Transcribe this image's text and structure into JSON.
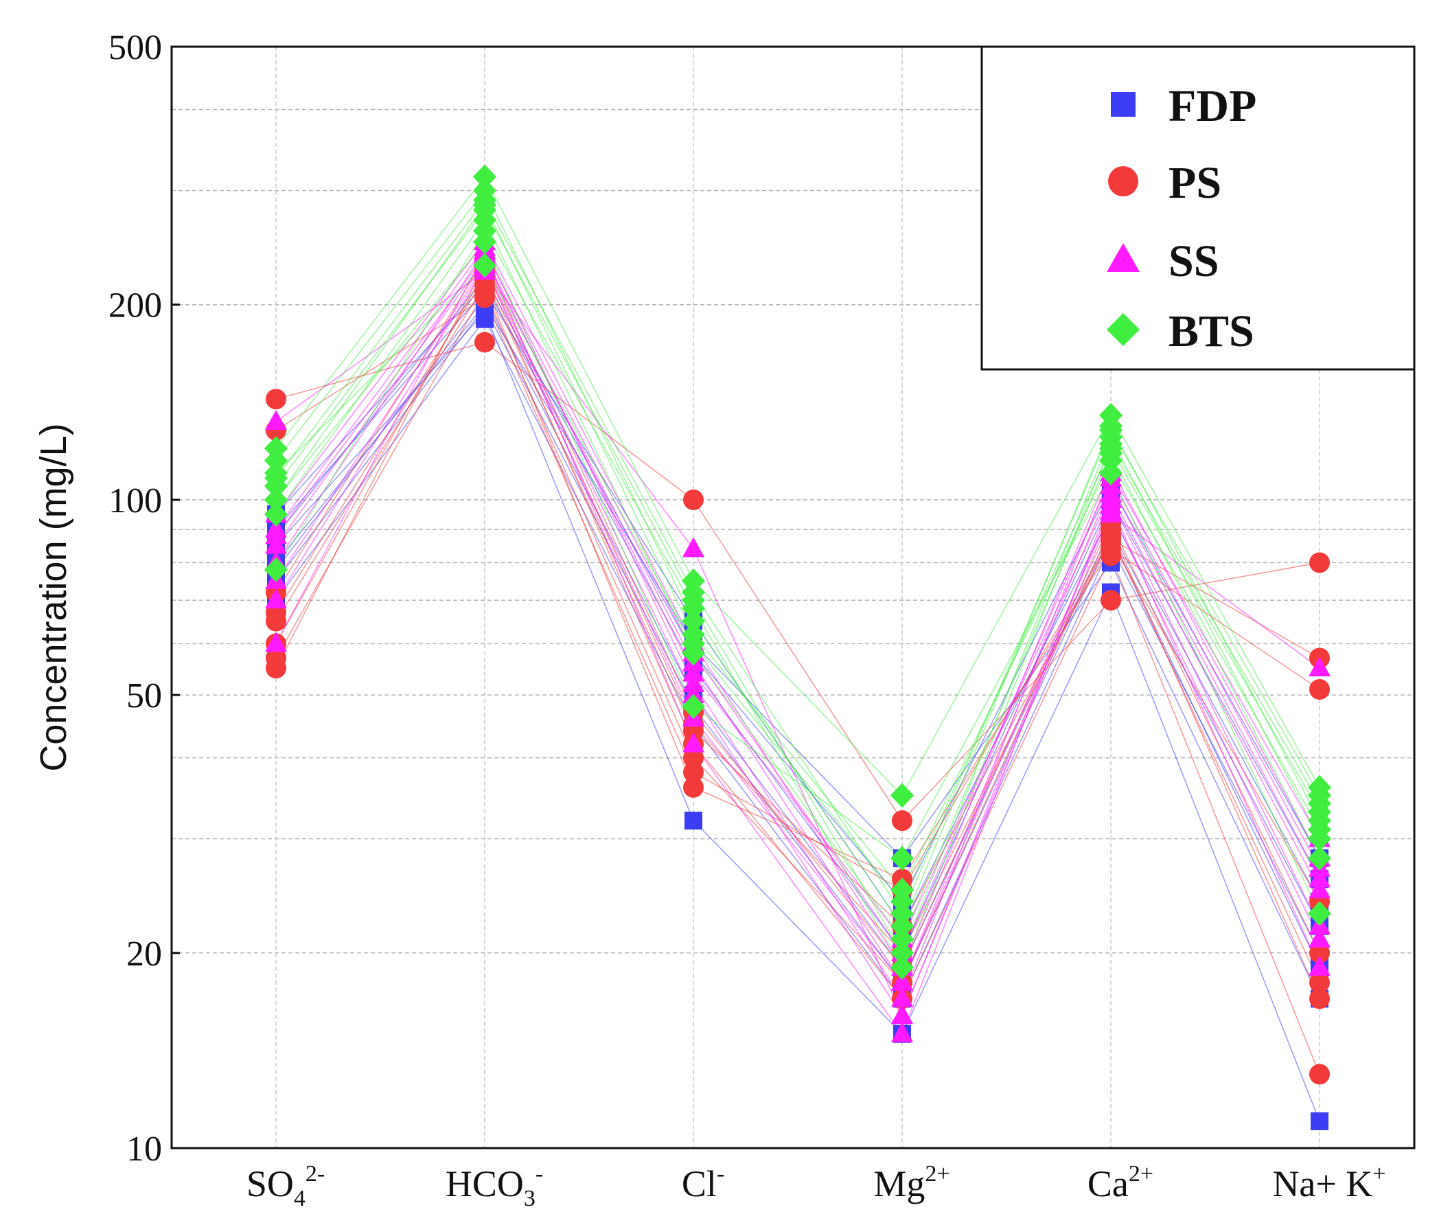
{
  "chart_data": {
    "type": "line",
    "title": "",
    "ylabel": "Concentration (mg/L)",
    "xlabel": "",
    "yscale": "log",
    "ylim": [
      10,
      500
    ],
    "yticks": [
      "500",
      "200",
      "100",
      "50",
      "20",
      "10"
    ],
    "grid": true,
    "legend_position": "top-right",
    "categories": [
      {
        "base": "SO",
        "sub": "4",
        "sup": "2-"
      },
      {
        "base": "HCO",
        "sub": "3",
        "sup": "-"
      },
      {
        "base": "Cl",
        "sub": "",
        "sup": "-"
      },
      {
        "base": "Mg",
        "sub": "",
        "sup": "2+"
      },
      {
        "base": "Ca",
        "sub": "",
        "sup": "2+"
      },
      {
        "base": "Na+ K",
        "sub": "",
        "sup": "+"
      }
    ],
    "series": [
      {
        "name": "FDP",
        "color": "#3d3df5",
        "marker": "square",
        "samples": [
          [
            85,
            195,
            32,
            15,
            72,
            11
          ],
          [
            80,
            200,
            60,
            28,
            80,
            17
          ],
          [
            90,
            210,
            65,
            22,
            95,
            24
          ],
          [
            70,
            190,
            45,
            17,
            85,
            20
          ],
          [
            95,
            215,
            55,
            20,
            100,
            26
          ],
          [
            78,
            205,
            50,
            19,
            90,
            22
          ],
          [
            88,
            220,
            58,
            24,
            105,
            28
          ],
          [
            75,
            198,
            48,
            18,
            88,
            19
          ]
        ]
      },
      {
        "name": "PS",
        "color": "#f23a3a",
        "marker": "circle",
        "samples": [
          [
            143,
            175,
            100,
            32,
            70,
            80
          ],
          [
            128,
            205,
            38,
            25,
            87,
            57
          ],
          [
            65,
            215,
            36,
            26,
            84,
            51
          ],
          [
            60,
            225,
            42,
            17,
            82,
            13
          ],
          [
            57,
            210,
            40,
            18,
            90,
            17
          ],
          [
            55,
            230,
            45,
            20,
            88,
            18
          ],
          [
            67,
            220,
            44,
            22,
            86,
            24
          ],
          [
            72,
            235,
            47,
            19,
            92,
            20
          ]
        ]
      },
      {
        "name": "SS",
        "color": "#ff1aff",
        "marker": "triangle",
        "samples": [
          [
            132,
            225,
            84,
            16,
            95,
            55
          ],
          [
            60,
            240,
            42,
            15,
            100,
            22
          ],
          [
            85,
            235,
            56,
            18,
            105,
            26
          ],
          [
            90,
            245,
            52,
            17,
            110,
            30
          ],
          [
            75,
            230,
            50,
            16,
            98,
            19
          ],
          [
            95,
            250,
            60,
            19,
            112,
            28
          ],
          [
            88,
            238,
            54,
            21,
            102,
            25
          ],
          [
            80,
            242,
            58,
            20,
            108,
            27
          ],
          [
            70,
            228,
            46,
            18,
            96,
            21
          ]
        ]
      },
      {
        "name": "BTS",
        "color": "#40ee40",
        "marker": "diamond",
        "samples": [
          [
            120,
            315,
            75,
            35,
            135,
            36
          ],
          [
            100,
            250,
            48,
            28,
            110,
            23
          ],
          [
            110,
            230,
            60,
            24,
            120,
            33
          ],
          [
            105,
            280,
            70,
            20,
            125,
            30
          ],
          [
            115,
            300,
            65,
            22,
            130,
            32
          ],
          [
            95,
            270,
            58,
            21,
            118,
            28
          ],
          [
            78,
            260,
            68,
            19,
            122,
            34
          ],
          [
            108,
            290,
            72,
            23,
            128,
            35
          ],
          [
            100,
            285,
            62,
            25,
            115,
            31
          ]
        ]
      }
    ]
  }
}
